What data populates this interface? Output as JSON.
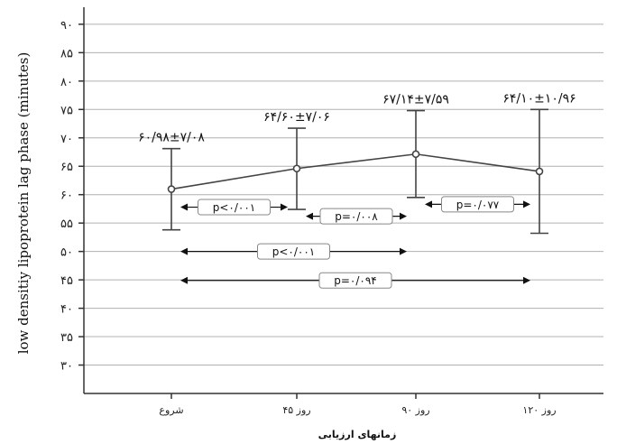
{
  "chart_data": {
    "type": "line",
    "ylabel": "low densitiy lipoprotein lag phase (minutes)",
    "xlabel": "زمانهای ارزیابی",
    "categories": [
      "شروع",
      "روز ۴۵",
      "روز ۹۰",
      "روز ۱۲۰"
    ],
    "ylim": [
      25,
      93
    ],
    "yticks": [
      30,
      35,
      40,
      45,
      50,
      55,
      60,
      65,
      70,
      75,
      80,
      85,
      90
    ],
    "ytick_labels": [
      "۳۰",
      "۳۵",
      "۴۰",
      "۴۵",
      "۵۰",
      "۵۵",
      "۶۰",
      "۶۵",
      "۷۰",
      "۷۵",
      "۸۰",
      "۸۵",
      "۹۰"
    ],
    "grid": true,
    "series": [
      {
        "values": [
          60.98,
          64.6,
          67.14,
          64.1
        ],
        "err_low": [
          53.8,
          57.4,
          59.5,
          53.2
        ],
        "err_high": [
          68.1,
          71.7,
          74.8,
          75.0
        ],
        "labels": [
          "۶۰/۹۸±۷/۰۸",
          "۶۴/۶۰±۷/۰۶",
          "۶۷/۱۴±۷/۵۹",
          "۶۴/۱۰±۱۰/۹۶"
        ]
      }
    ],
    "comparisons": [
      {
        "from": 0,
        "to": 1,
        "y": 57.8,
        "label": "p<۰/۰۰۱"
      },
      {
        "from": 1,
        "to": 2,
        "y": 56.2,
        "label": "p=۰/۰۰۸"
      },
      {
        "from": 2,
        "to": 3,
        "y": 58.3,
        "label": "p=۰/۰۷۷"
      },
      {
        "from": 0,
        "to": 2,
        "y": 50.0,
        "label": "p<۰/۰۰۱"
      },
      {
        "from": 0,
        "to": 3,
        "y": 44.9,
        "label": "p=۰/۰۹۴"
      }
    ],
    "colors": {
      "line": "#444444",
      "grid": "#b0b0b0",
      "axis": "#333333",
      "box": "#888888"
    }
  }
}
